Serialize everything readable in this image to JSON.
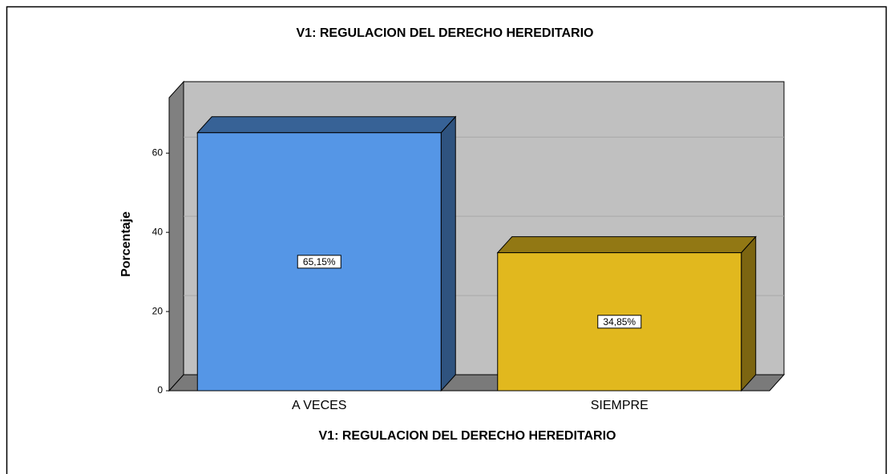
{
  "chart_data": {
    "type": "bar3d",
    "title": "V1: REGULACION DEL DERECHO HEREDITARIO",
    "x_label": "V1: REGULACION DEL DERECHO HEREDITARIO",
    "y_label": "Porcentaje",
    "categories": [
      "A VECES",
      "SIEMPRE"
    ],
    "values": [
      65.15,
      34.85
    ],
    "value_labels": [
      "65,15%",
      "34,85%"
    ],
    "colors": [
      "#5596e6",
      "#e1b81e"
    ],
    "ylim": [
      0,
      74
    ],
    "yticks": [
      0,
      20,
      40,
      60
    ],
    "grid": true
  }
}
